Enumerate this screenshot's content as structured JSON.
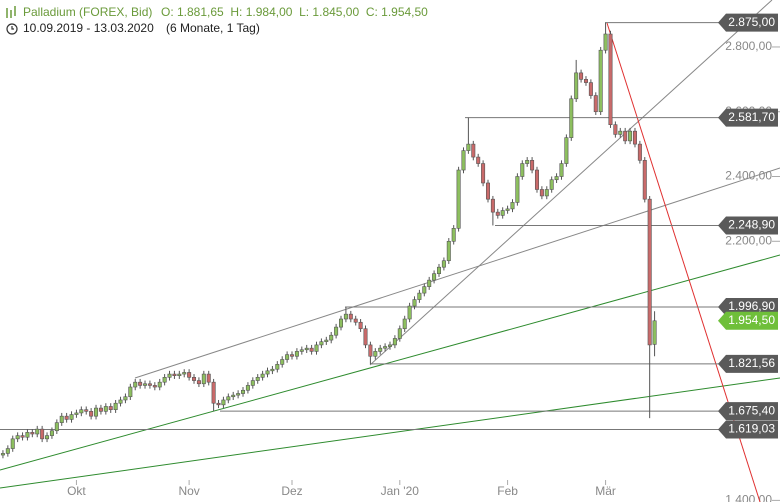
{
  "chart_data": {
    "type": "candlestick",
    "title": "Palladium (FOREX, Bid)",
    "ohlc_text": "O: 1.881,65  H: 1.984,00  L: 1.845,00  C: 1.954,50",
    "subtitle": "10.09.2019 - 13.03.2020",
    "period": "(6 Monate, 1 Tag)",
    "up_color": "#8dbf5f",
    "down_color": "#c96a6a",
    "ylim": [
      1395,
      2945
    ],
    "yticks": [
      {
        "value": 1400,
        "label": "1.400,00"
      },
      {
        "value": 2200,
        "label": "2.200,00"
      },
      {
        "value": 2400,
        "label": "2.400,00"
      },
      {
        "value": 2600,
        "label": "2.600,00"
      },
      {
        "value": 2800,
        "label": "2.800,00"
      }
    ],
    "xlim": [
      -0.6,
      158.6
    ],
    "xticks": [
      {
        "value": 15,
        "label": "Okt"
      },
      {
        "value": 38,
        "label": "Nov"
      },
      {
        "value": 59,
        "label": "Dez"
      },
      {
        "value": 81,
        "label": "Jan '20"
      },
      {
        "value": 103,
        "label": "Feb"
      },
      {
        "value": 123,
        "label": "Mär"
      }
    ],
    "open": [
      1540,
      1545,
      1560,
      1590,
      1600,
      1595,
      1610,
      1605,
      1620,
      1590,
      1600,
      1615,
      1640,
      1660,
      1650,
      1665,
      1670,
      1680,
      1675,
      1660,
      1685,
      1675,
      1690,
      1680,
      1700,
      1710,
      1720,
      1750,
      1765,
      1755,
      1760,
      1755,
      1750,
      1765,
      1780,
      1790,
      1785,
      1790,
      1795,
      1780,
      1770,
      1760,
      1790,
      1765,
      1700,
      1695,
      1710,
      1720,
      1725,
      1730,
      1740,
      1755,
      1770,
      1780,
      1790,
      1800,
      1805,
      1820,
      1835,
      1850,
      1845,
      1860,
      1865,
      1870,
      1860,
      1880,
      1890,
      1895,
      1910,
      1935,
      1960,
      1975,
      1960,
      1950,
      1930,
      1880,
      1845,
      1860,
      1870,
      1875,
      1880,
      1900,
      1930,
      1960,
      2000,
      2020,
      2040,
      2060,
      2080,
      2100,
      2120,
      2140,
      2200,
      2240,
      2420,
      2480,
      2500,
      2460,
      2440,
      2380,
      2330,
      2290,
      2280,
      2295,
      2300,
      2320,
      2400,
      2440,
      2450,
      2420,
      2360,
      2340,
      2360,
      2390,
      2400,
      2440,
      2520,
      2640,
      2720,
      2700,
      2690,
      2650,
      2600,
      2790,
      2840,
      2560,
      2530,
      2540,
      2510,
      2540,
      2500,
      2450,
      2330,
      1881.65
    ],
    "high": [
      1555,
      1570,
      1600,
      1610,
      1610,
      1620,
      1620,
      1630,
      1630,
      1610,
      1625,
      1650,
      1670,
      1670,
      1675,
      1680,
      1690,
      1690,
      1685,
      1695,
      1695,
      1700,
      1700,
      1710,
      1720,
      1730,
      1760,
      1775,
      1775,
      1770,
      1770,
      1765,
      1775,
      1790,
      1800,
      1800,
      1800,
      1805,
      1805,
      1790,
      1780,
      1800,
      1800,
      1775,
      1710,
      1720,
      1730,
      1735,
      1740,
      1750,
      1765,
      1780,
      1790,
      1800,
      1810,
      1815,
      1830,
      1845,
      1860,
      1860,
      1870,
      1875,
      1880,
      1880,
      1890,
      1900,
      1905,
      1920,
      1945,
      1970,
      1996.9,
      1985,
      1970,
      1960,
      1940,
      1890,
      1870,
      1880,
      1885,
      1890,
      1910,
      1940,
      1970,
      2010,
      2030,
      2050,
      2070,
      2090,
      2110,
      2130,
      2150,
      2210,
      2250,
      2430,
      2490,
      2581.7,
      2510,
      2470,
      2450,
      2390,
      2340,
      2300,
      2305,
      2310,
      2330,
      2410,
      2450,
      2460,
      2460,
      2430,
      2370,
      2370,
      2400,
      2410,
      2450,
      2530,
      2650,
      2760,
      2730,
      2710,
      2700,
      2660,
      2800,
      2875,
      2850,
      2570,
      2550,
      2550,
      2550,
      2550,
      2510,
      2460,
      2340,
      1984
    ],
    "low": [
      1530,
      1535,
      1550,
      1580,
      1585,
      1585,
      1595,
      1595,
      1580,
      1580,
      1590,
      1605,
      1630,
      1640,
      1640,
      1655,
      1660,
      1665,
      1650,
      1650,
      1665,
      1665,
      1670,
      1670,
      1690,
      1700,
      1710,
      1740,
      1745,
      1745,
      1745,
      1740,
      1740,
      1755,
      1770,
      1775,
      1775,
      1780,
      1770,
      1760,
      1750,
      1750,
      1755,
      1675.4,
      1685,
      1685,
      1700,
      1710,
      1715,
      1720,
      1730,
      1745,
      1760,
      1770,
      1780,
      1790,
      1795,
      1810,
      1825,
      1835,
      1835,
      1850,
      1855,
      1850,
      1850,
      1870,
      1880,
      1885,
      1900,
      1925,
      1950,
      1950,
      1940,
      1920,
      1870,
      1821.56,
      1835,
      1850,
      1860,
      1865,
      1870,
      1890,
      1920,
      1950,
      1990,
      2010,
      2030,
      2050,
      2070,
      2090,
      2110,
      2130,
      2190,
      2230,
      2410,
      2470,
      2450,
      2430,
      2370,
      2320,
      2248.9,
      2270,
      2270,
      2285,
      2290,
      2310,
      2390,
      2430,
      2410,
      2350,
      2330,
      2330,
      2350,
      2380,
      2390,
      2430,
      2510,
      2630,
      2690,
      2680,
      2640,
      2590,
      2590,
      2780,
      2550,
      2520,
      2520,
      2500,
      2500,
      2490,
      2440,
      2320,
      1654,
      1845
    ],
    "close": [
      1545,
      1560,
      1590,
      1600,
      1595,
      1610,
      1605,
      1620,
      1590,
      1600,
      1615,
      1640,
      1660,
      1650,
      1665,
      1670,
      1680,
      1675,
      1660,
      1685,
      1675,
      1690,
      1680,
      1700,
      1710,
      1720,
      1750,
      1765,
      1755,
      1760,
      1755,
      1750,
      1765,
      1780,
      1790,
      1785,
      1790,
      1795,
      1780,
      1770,
      1760,
      1790,
      1765,
      1700,
      1695,
      1710,
      1720,
      1725,
      1730,
      1740,
      1755,
      1770,
      1780,
      1790,
      1800,
      1805,
      1820,
      1835,
      1850,
      1845,
      1860,
      1865,
      1870,
      1860,
      1880,
      1890,
      1895,
      1910,
      1935,
      1960,
      1975,
      1960,
      1950,
      1930,
      1880,
      1845,
      1860,
      1870,
      1875,
      1880,
      1900,
      1930,
      1960,
      2000,
      2020,
      2040,
      2060,
      2080,
      2100,
      2120,
      2140,
      2200,
      2240,
      2420,
      2480,
      2500,
      2460,
      2440,
      2380,
      2330,
      2290,
      2280,
      2295,
      2300,
      2320,
      2400,
      2440,
      2450,
      2420,
      2360,
      2340,
      2360,
      2390,
      2400,
      2440,
      2520,
      2640,
      2720,
      2700,
      2690,
      2650,
      2600,
      2790,
      2840,
      2560,
      2530,
      2540,
      2510,
      2540,
      2500,
      2450,
      2330,
      1880,
      1954.5
    ],
    "levels": [
      {
        "value": 2875,
        "label": "2.875,00"
      },
      {
        "value": 2581.7,
        "label": "2.581,70"
      },
      {
        "value": 2248.9,
        "label": "2.248,90"
      },
      {
        "value": 1996.9,
        "label": "1.996,90"
      },
      {
        "value": 1821.56,
        "label": "1.821,56"
      },
      {
        "value": 1675.4,
        "label": "1.675,40"
      },
      {
        "value": 1619.03,
        "label": "1.619,03"
      }
    ],
    "level_color": "#5a5a5a",
    "last_price": {
      "value": 1954.5,
      "label": "1.954,50",
      "color": "#6fbf3a"
    }
  }
}
